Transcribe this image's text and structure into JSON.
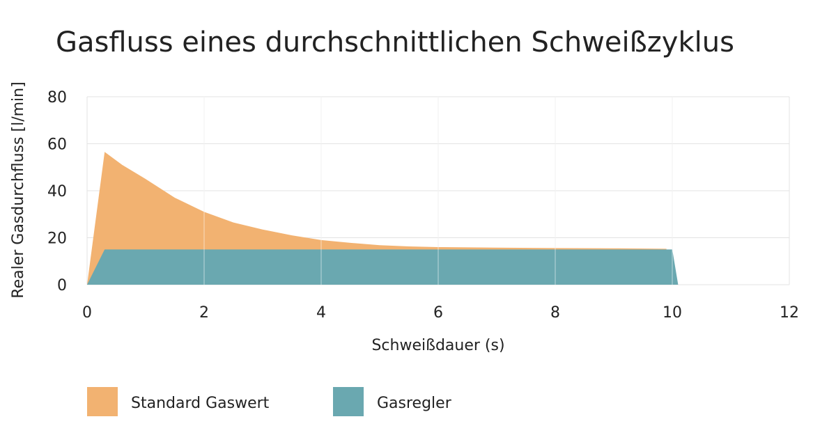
{
  "chart_data": {
    "type": "area",
    "title": "Gasfluss eines durchschnittlichen Schweißzyklus",
    "xlabel": "Schweißdauer (s)",
    "ylabel": "Realer Gasdurchfluss  [l/min]",
    "xlim": [
      0,
      12
    ],
    "ylim": [
      0,
      80
    ],
    "xticks": [
      0,
      2,
      4,
      6,
      8,
      10,
      12
    ],
    "yticks": [
      0,
      20,
      40,
      60,
      80
    ],
    "grid": true,
    "legend_position": "bottom-left",
    "series": [
      {
        "name": "Standard Gaswert",
        "color": "#f2b271",
        "x": [
          0,
          0.3,
          0.6,
          1.0,
          1.5,
          2.0,
          2.5,
          3.0,
          3.5,
          4.0,
          4.5,
          5.0,
          5.5,
          6.0,
          7.0,
          8.0,
          9.0,
          9.9,
          9.9
        ],
        "y": [
          0,
          56.5,
          51,
          45,
          37,
          31,
          26.5,
          23.5,
          21,
          19,
          17.8,
          16.8,
          16.3,
          16,
          15.8,
          15.6,
          15.5,
          15.3,
          0
        ]
      },
      {
        "name": "Gasregler",
        "color": "#6aa8b0",
        "x": [
          0,
          0.3,
          10.0,
          10.1
        ],
        "y": [
          0,
          15,
          15,
          0
        ]
      }
    ]
  }
}
